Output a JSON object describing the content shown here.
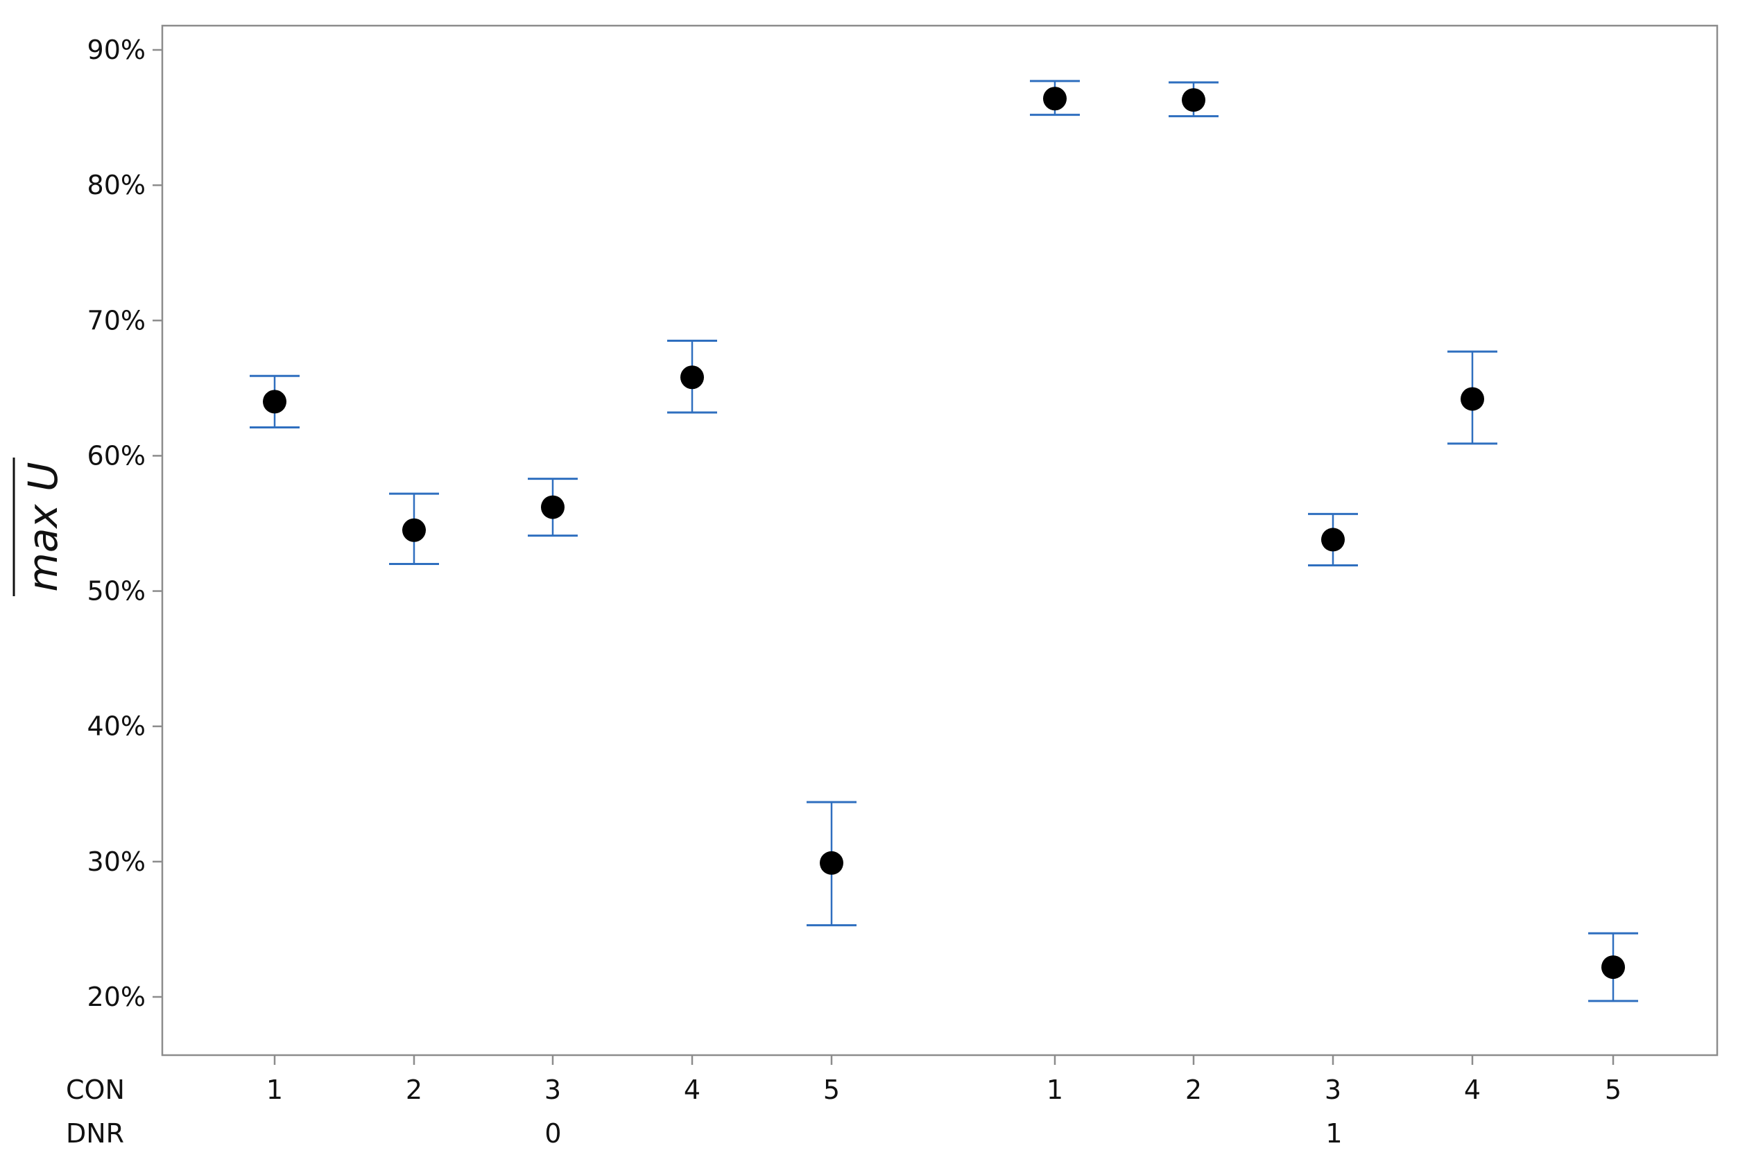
{
  "chart_data": {
    "type": "scatter",
    "title": "",
    "xlabel": "",
    "ylabel": "max U",
    "ylim": [
      15,
      92
    ],
    "yticks": [
      20,
      30,
      40,
      50,
      60,
      70,
      80,
      90
    ],
    "ytick_labels": [
      "20%",
      "30%",
      "40%",
      "50%",
      "60%",
      "70%",
      "80%",
      "90%"
    ],
    "y_unit": "%",
    "grid": false,
    "row_labels": [
      "CON",
      "DNR"
    ],
    "groups": [
      {
        "label": "0",
        "categories": [
          "1",
          "2",
          "3",
          "4",
          "5"
        ]
      },
      {
        "label": "1",
        "categories": [
          "1",
          "2",
          "3",
          "4",
          "5"
        ]
      }
    ],
    "series": [
      {
        "points": [
          {
            "con": "1",
            "dnr": "0",
            "mean": 64.0,
            "low": 62.1,
            "high": 65.9
          },
          {
            "con": "2",
            "dnr": "0",
            "mean": 54.5,
            "low": 52.0,
            "high": 57.2
          },
          {
            "con": "3",
            "dnr": "0",
            "mean": 56.2,
            "low": 54.1,
            "high": 58.3
          },
          {
            "con": "4",
            "dnr": "0",
            "mean": 65.8,
            "low": 63.2,
            "high": 68.5
          },
          {
            "con": "5",
            "dnr": "0",
            "mean": 29.9,
            "low": 25.3,
            "high": 34.4
          },
          {
            "con": "1",
            "dnr": "1",
            "mean": 86.4,
            "low": 85.2,
            "high": 87.7
          },
          {
            "con": "2",
            "dnr": "1",
            "mean": 86.3,
            "low": 85.1,
            "high": 87.6
          },
          {
            "con": "3",
            "dnr": "1",
            "mean": 53.8,
            "low": 51.9,
            "high": 55.7
          },
          {
            "con": "4",
            "dnr": "1",
            "mean": 64.2,
            "low": 60.9,
            "high": 67.7
          },
          {
            "con": "5",
            "dnr": "1",
            "mean": 22.2,
            "low": 19.7,
            "high": 24.7
          }
        ]
      }
    ],
    "colors": {
      "point": "#000000",
      "errorbar": "#2f6fbf",
      "errorbar_light": "#9fb1de",
      "axis": "#8c8c8c"
    }
  }
}
